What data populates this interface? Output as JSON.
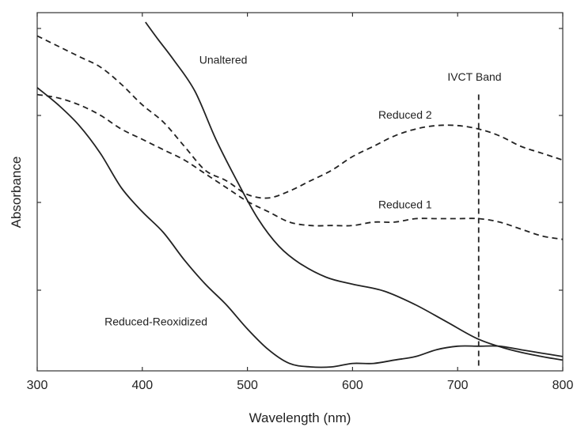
{
  "chart_data": {
    "type": "line",
    "title": "",
    "xlabel": "Wavelength (nm)",
    "ylabel": "Absorbance",
    "xlim": [
      300,
      800
    ],
    "ylim": [
      0,
      1
    ],
    "x_ticks": [
      300,
      400,
      500,
      600,
      700,
      800
    ],
    "x_tick_labels": [
      "300",
      "400",
      "500",
      "600",
      "700",
      "800"
    ],
    "y_tick_labels_shown": false,
    "grid": false,
    "legend": "none",
    "series": [
      {
        "name": "Unaltered",
        "style": "solid",
        "color": "#222222",
        "x": [
          403,
          415,
          430,
          450,
          470,
          490,
          510,
          530,
          550,
          575,
          600,
          630,
          660,
          690,
          720,
          750,
          780,
          800
        ],
        "y": [
          1.0,
          0.95,
          0.89,
          0.8,
          0.66,
          0.54,
          0.43,
          0.35,
          0.3,
          0.26,
          0.24,
          0.22,
          0.18,
          0.13,
          0.08,
          0.05,
          0.03,
          0.02
        ]
      },
      {
        "name": "Reduced 2",
        "style": "dashed",
        "color": "#222222",
        "x": [
          300,
          320,
          340,
          360,
          380,
          400,
          420,
          440,
          460,
          480,
          500,
          520,
          540,
          560,
          580,
          600,
          620,
          640,
          660,
          680,
          700,
          720,
          740,
          760,
          780,
          800
        ],
        "y": [
          0.96,
          0.93,
          0.9,
          0.87,
          0.82,
          0.76,
          0.71,
          0.64,
          0.57,
          0.54,
          0.5,
          0.49,
          0.51,
          0.54,
          0.57,
          0.61,
          0.64,
          0.67,
          0.69,
          0.7,
          0.7,
          0.69,
          0.67,
          0.64,
          0.62,
          0.6
        ]
      },
      {
        "name": "Reduced 1",
        "style": "dashed",
        "color": "#222222",
        "x": [
          300,
          320,
          340,
          360,
          380,
          400,
          420,
          440,
          460,
          480,
          500,
          520,
          540,
          560,
          580,
          600,
          620,
          640,
          660,
          680,
          700,
          720,
          740,
          760,
          780,
          800
        ],
        "y": [
          0.79,
          0.78,
          0.76,
          0.73,
          0.69,
          0.66,
          0.63,
          0.6,
          0.56,
          0.52,
          0.48,
          0.45,
          0.42,
          0.41,
          0.41,
          0.41,
          0.42,
          0.42,
          0.43,
          0.43,
          0.43,
          0.43,
          0.42,
          0.4,
          0.38,
          0.37
        ]
      },
      {
        "name": "Reduced-Reoxidized",
        "style": "solid",
        "color": "#222222",
        "x": [
          300,
          320,
          340,
          360,
          380,
          400,
          420,
          440,
          460,
          480,
          500,
          520,
          540,
          560,
          580,
          600,
          620,
          640,
          660,
          680,
          700,
          720,
          740,
          760,
          780,
          800
        ],
        "y": [
          0.81,
          0.76,
          0.7,
          0.62,
          0.52,
          0.45,
          0.39,
          0.31,
          0.24,
          0.18,
          0.11,
          0.05,
          0.01,
          0.0,
          0.0,
          0.01,
          0.01,
          0.02,
          0.03,
          0.05,
          0.06,
          0.06,
          0.06,
          0.05,
          0.04,
          0.03
        ]
      }
    ],
    "annotations": [
      {
        "text": "Unaltered",
        "x": 477,
        "y": 0.88
      },
      {
        "text": "Reduced 2",
        "x": 650,
        "y": 0.72
      },
      {
        "text": "Reduced 1",
        "x": 650,
        "y": 0.46
      },
      {
        "text": "Reduced-Reoxidized",
        "x": 413,
        "y": 0.12
      },
      {
        "text": "IVCT Band",
        "x": 716,
        "y": 0.83
      }
    ],
    "vline": {
      "x": 720,
      "y_from": 0.0,
      "y_to": 0.79,
      "style": "dashed"
    }
  }
}
